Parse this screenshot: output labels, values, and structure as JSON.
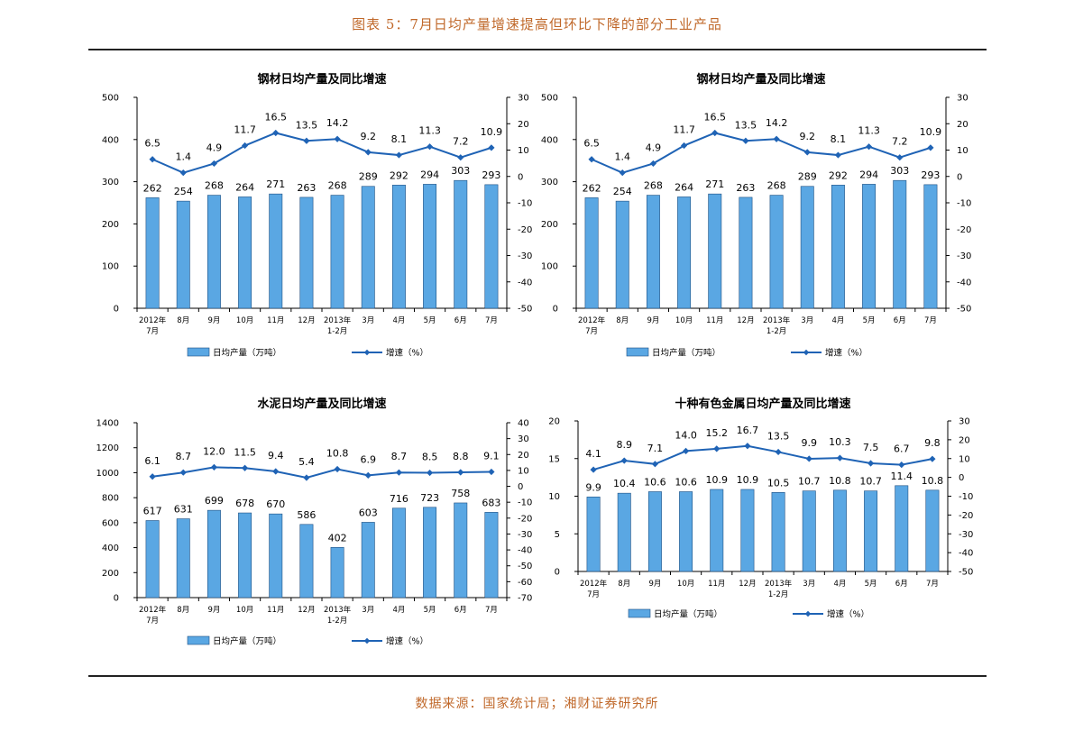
{
  "figure_title": "图表 5：7月日均产量增速提高但环比下降的部分工业产品",
  "source": "数据来源：国家统计局；湘财证券研究所",
  "colors": {
    "bar_fill": "#5aa7e3",
    "bar_stroke": "#1d4f82",
    "line": "#1f63b5",
    "accent": "#c0682a"
  },
  "chart_data": [
    {
      "type": "bar+line",
      "title": "钢材日均产量及同比增速",
      "categories": [
        [
          "2012年",
          "7月"
        ],
        [
          "8月"
        ],
        [
          "9月"
        ],
        [
          "10月"
        ],
        [
          "11月"
        ],
        [
          "12月"
        ],
        [
          "2013年",
          "1-2月"
        ],
        [
          "3月"
        ],
        [
          "4月"
        ],
        [
          "5月"
        ],
        [
          "6月"
        ],
        [
          "7月"
        ]
      ],
      "series": [
        {
          "name": "日均产量（万吨）",
          "type": "bar",
          "axis": "left",
          "values": [
            262,
            254,
            268,
            264,
            271,
            263,
            268,
            289,
            292,
            294,
            303,
            293
          ]
        },
        {
          "name": "增速（%）",
          "type": "line",
          "axis": "right",
          "values": [
            6.5,
            1.4,
            4.9,
            11.7,
            16.5,
            13.5,
            14.2,
            9.2,
            8.1,
            11.3,
            7.2,
            10.9
          ]
        }
      ],
      "left_axis": {
        "min": 0,
        "max": 500,
        "step": 100
      },
      "right_axis": {
        "min": -50,
        "max": 30,
        "step": 10
      },
      "legend_position": "bottom"
    },
    {
      "type": "bar+line",
      "title": "钢材日均产量及同比增速",
      "categories": [
        [
          "2012年",
          "7月"
        ],
        [
          "8月"
        ],
        [
          "9月"
        ],
        [
          "10月"
        ],
        [
          "11月"
        ],
        [
          "12月"
        ],
        [
          "2013年",
          "1-2月"
        ],
        [
          "3月"
        ],
        [
          "4月"
        ],
        [
          "5月"
        ],
        [
          "6月"
        ],
        [
          "7月"
        ]
      ],
      "series": [
        {
          "name": "日均产量（万吨）",
          "type": "bar",
          "axis": "left",
          "values": [
            262,
            254,
            268,
            264,
            271,
            263,
            268,
            289,
            292,
            294,
            303,
            293
          ]
        },
        {
          "name": "增速（%）",
          "type": "line",
          "axis": "right",
          "values": [
            6.5,
            1.4,
            4.9,
            11.7,
            16.5,
            13.5,
            14.2,
            9.2,
            8.1,
            11.3,
            7.2,
            10.9
          ]
        }
      ],
      "left_axis": {
        "min": 0,
        "max": 500,
        "step": 100
      },
      "right_axis": {
        "min": -50,
        "max": 30,
        "step": 10
      },
      "legend_position": "bottom"
    },
    {
      "type": "bar+line",
      "title": "水泥日均产量及同比增速",
      "categories": [
        [
          "2012年",
          "7月"
        ],
        [
          "8月"
        ],
        [
          "9月"
        ],
        [
          "10月"
        ],
        [
          "11月"
        ],
        [
          "12月"
        ],
        [
          "2013年",
          "1-2月"
        ],
        [
          "3月"
        ],
        [
          "4月"
        ],
        [
          "5月"
        ],
        [
          "6月"
        ],
        [
          "7月"
        ]
      ],
      "series": [
        {
          "name": "日均产量（万吨）",
          "type": "bar",
          "axis": "left",
          "values": [
            617,
            631,
            699,
            678,
            670,
            586,
            402,
            603,
            716,
            723,
            758,
            683
          ]
        },
        {
          "name": "增速（%）",
          "type": "line",
          "axis": "right",
          "values": [
            6.1,
            8.7,
            12.0,
            11.5,
            9.4,
            5.4,
            10.8,
            6.9,
            8.7,
            8.5,
            8.8,
            9.1
          ]
        }
      ],
      "left_axis": {
        "min": 0,
        "max": 1400,
        "step": 200
      },
      "right_axis": {
        "min": -70,
        "max": 40,
        "step": 10
      },
      "legend_position": "bottom"
    },
    {
      "type": "bar+line",
      "title": "十种有色金属日均产量及同比增速",
      "categories": [
        [
          "2012年",
          "7月"
        ],
        [
          "8月"
        ],
        [
          "9月"
        ],
        [
          "10月"
        ],
        [
          "11月"
        ],
        [
          "12月"
        ],
        [
          "2013年",
          "1-2月"
        ],
        [
          "3月"
        ],
        [
          "4月"
        ],
        [
          "5月"
        ],
        [
          "6月"
        ],
        [
          "7月"
        ]
      ],
      "series": [
        {
          "name": "日均产量（万吨）",
          "type": "bar",
          "axis": "left",
          "values": [
            9.9,
            10.4,
            10.6,
            10.6,
            10.9,
            10.9,
            10.5,
            10.7,
            10.8,
            10.7,
            11.4,
            10.8
          ]
        },
        {
          "name": "增速（%）",
          "type": "line",
          "axis": "right",
          "values": [
            4.1,
            8.9,
            7.1,
            14.0,
            15.2,
            16.7,
            13.5,
            9.9,
            10.3,
            7.5,
            6.7,
            9.8
          ]
        }
      ],
      "left_axis": {
        "min": 0,
        "max": 20,
        "step": 5
      },
      "right_axis": {
        "min": -50,
        "max": 30,
        "step": 10
      },
      "legend_position": "bottom"
    }
  ]
}
